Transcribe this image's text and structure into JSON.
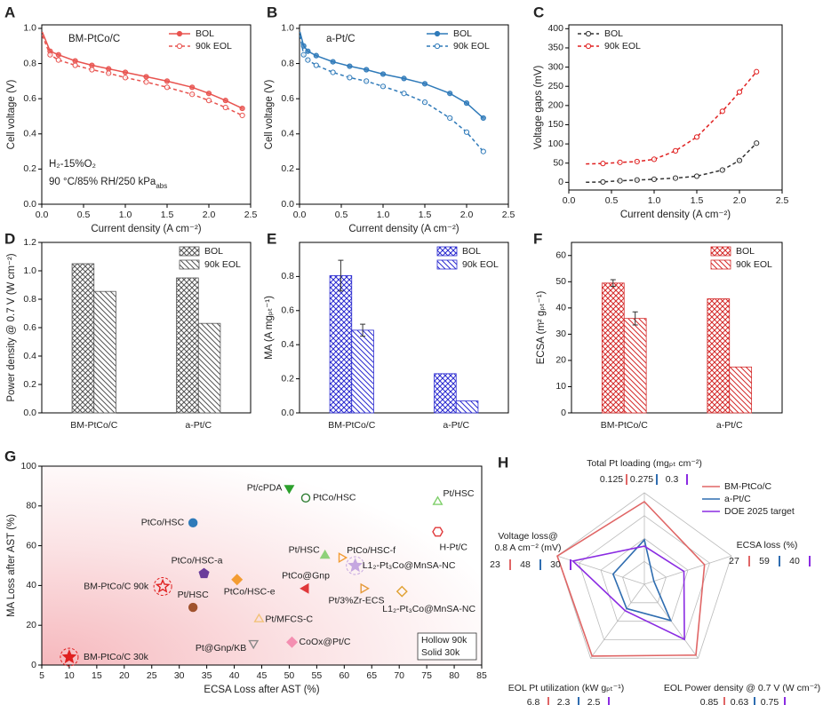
{
  "chart_data": [
    {
      "label": "A",
      "type": "line",
      "inset_title": "BM-PtCo/C",
      "notes": [
        {
          "text": "H₂-15%O₂"
        },
        {
          "text": "90 °C/85% RH/250 kPa",
          "sub": "abs"
        }
      ],
      "xlabel": "Current density (A cm⁻²)",
      "ylabel": "Cell voltage (V)",
      "xlim": [
        0,
        2.5
      ],
      "ylim": [
        0,
        1.02
      ],
      "xticks": [
        {
          "value": 0,
          "label": "0.0"
        },
        0.5,
        {
          "value": 1,
          "label": "1.0"
        },
        1.5,
        {
          "value": 2,
          "label": "2.0"
        },
        2.5
      ],
      "yticks": [
        {
          "value": 0,
          "label": "0.0"
        },
        0.2,
        0.4,
        0.6,
        0.8,
        {
          "value": 1,
          "label": "1.0"
        }
      ],
      "legend": "upper right",
      "x": [
        0.005,
        0.1,
        0.2,
        0.4,
        0.6,
        0.8,
        1.0,
        1.25,
        1.5,
        1.8,
        2.0,
        2.2,
        2.4
      ],
      "series": [
        {
          "name": "BOL",
          "color": "#e8534f",
          "style": "solid",
          "marker": "filled",
          "values": [
            0.98,
            0.87,
            0.85,
            0.815,
            0.79,
            0.77,
            0.75,
            0.725,
            0.7,
            0.665,
            0.63,
            0.59,
            0.545
          ]
        },
        {
          "name": "90k EOL",
          "color": "#e8534f",
          "style": "dashed",
          "marker": "hollow",
          "values": [
            0.96,
            0.85,
            0.82,
            0.79,
            0.765,
            0.745,
            0.72,
            0.695,
            0.665,
            0.625,
            0.59,
            0.55,
            0.505
          ]
        }
      ]
    },
    {
      "label": "B",
      "type": "line",
      "inset_title": "a-Pt/C",
      "xlabel": "Current density (A cm⁻²)",
      "ylabel": "Cell voltage (V)",
      "xlim": [
        0,
        2.5
      ],
      "ylim": [
        0,
        1.02
      ],
      "xticks": [
        {
          "value": 0,
          "label": "0.0"
        },
        0.5,
        {
          "value": 1,
          "label": "1.0"
        },
        1.5,
        {
          "value": 2,
          "label": "2.0"
        },
        2.5
      ],
      "yticks": [
        {
          "value": 0,
          "label": "0.0"
        },
        0.2,
        0.4,
        0.6,
        0.8,
        {
          "value": 1,
          "label": "1.0"
        }
      ],
      "legend": "upper right",
      "x": [
        0.005,
        0.05,
        0.1,
        0.2,
        0.4,
        0.6,
        0.8,
        1.0,
        1.25,
        1.5,
        1.8,
        2.0,
        2.2
      ],
      "series": [
        {
          "name": "BOL",
          "color": "#2f7ab9",
          "style": "solid",
          "marker": "filled",
          "values": [
            0.98,
            0.9,
            0.87,
            0.845,
            0.81,
            0.785,
            0.765,
            0.74,
            0.715,
            0.685,
            0.63,
            0.575,
            0.49
          ]
        },
        {
          "name": "90k EOL",
          "color": "#2f7ab9",
          "style": "dashed",
          "marker": "hollow",
          "values": [
            0.96,
            0.85,
            0.82,
            0.79,
            0.75,
            0.72,
            0.7,
            0.67,
            0.63,
            0.58,
            0.49,
            0.41,
            0.3
          ]
        }
      ]
    },
    {
      "label": "C",
      "type": "line",
      "xlabel": "Current density (A cm⁻²)",
      "ylabel": "Voltage gaps (mV)",
      "xlim": [
        0,
        2.5
      ],
      "ylim": [
        -20,
        410
      ],
      "xticks": [
        {
          "value": 0,
          "label": "0.0"
        },
        0.5,
        {
          "value": 1,
          "label": "1.0"
        },
        1.5,
        {
          "value": 2,
          "label": "2.0"
        },
        2.5
      ],
      "yticks": [
        0,
        50,
        100,
        150,
        200,
        250,
        300,
        350,
        400
      ],
      "legend": "upper left",
      "x": [
        0.2,
        0.4,
        0.6,
        0.8,
        1.0,
        1.25,
        1.5,
        1.8,
        2.0,
        2.2
      ],
      "series": [
        {
          "name": "BOL",
          "color": "#333333",
          "style": "dashed",
          "marker": "hollow",
          "values": [
            0,
            1,
            4,
            6,
            8,
            11,
            16,
            32,
            57,
            102
          ]
        },
        {
          "name": "90k EOL",
          "color": "#e02020",
          "style": "dashed",
          "marker": "hollow",
          "values": [
            48,
            49,
            52,
            54,
            60,
            82,
            118,
            185,
            235,
            288
          ]
        }
      ]
    },
    {
      "label": "D",
      "type": "bar",
      "ylabel": "Power density @ 0.7 V (W cm⁻²)",
      "categories": [
        "BM-PtCo/C",
        "a-Pt/C"
      ],
      "ylim": [
        0,
        1.2
      ],
      "yticks": [
        {
          "value": 0,
          "label": "0.0"
        },
        0.2,
        0.4,
        0.6,
        0.8,
        {
          "value": 1,
          "label": "1.0"
        },
        1.2
      ],
      "legend": "upper right",
      "series": [
        {
          "name": "BOL",
          "color": "#555555",
          "hatch": "cross",
          "values": [
            1.05,
            0.95
          ]
        },
        {
          "name": "90k EOL",
          "color": "#555555",
          "hatch": "diagonal",
          "values": [
            0.855,
            0.63
          ]
        }
      ]
    },
    {
      "label": "E",
      "type": "bar",
      "ylabel": "MA (A mgₚₜ⁻¹)",
      "categories": [
        "BM-PtCo/C",
        "a-Pt/C"
      ],
      "ylim": [
        0,
        1.0
      ],
      "yticks": [
        {
          "value": 0,
          "label": "0.0"
        },
        0.2,
        0.4,
        0.6,
        0.8
      ],
      "legend": "upper right",
      "series": [
        {
          "name": "BOL",
          "color": "#2a2ad0",
          "hatch": "cross",
          "values": [
            0.805,
            0.23
          ],
          "errors": [
            0.09,
            null
          ]
        },
        {
          "name": "90k EOL",
          "color": "#2a2ad0",
          "hatch": "diagonal",
          "values": [
            0.485,
            0.07
          ],
          "errors": [
            0.035,
            null
          ]
        }
      ]
    },
    {
      "label": "F",
      "type": "bar",
      "ylabel": "ECSA (m² gₚₜ⁻¹)",
      "categories": [
        "BM-PtCo/C",
        "a-Pt/C"
      ],
      "ylim": [
        0,
        65
      ],
      "yticks": [
        0,
        10,
        20,
        30,
        40,
        50,
        60
      ],
      "legend": "upper right",
      "series": [
        {
          "name": "BOL",
          "color": "#d42a2a",
          "hatch": "cross",
          "values": [
            49.5,
            43.5
          ],
          "errors": [
            1.3,
            null
          ]
        },
        {
          "name": "90k EOL",
          "color": "#d42a2a",
          "hatch": "diagonal",
          "values": [
            36,
            17.5
          ],
          "errors": [
            2.5,
            null
          ]
        }
      ]
    },
    {
      "label": "G",
      "type": "scatter",
      "xlabel": "ECSA Loss after AST (%)",
      "ylabel": "MA Loss after AST (%)",
      "xlim": [
        5,
        85
      ],
      "ylim": [
        0,
        100
      ],
      "xticks": [
        5,
        10,
        15,
        20,
        25,
        30,
        35,
        40,
        45,
        50,
        55,
        60,
        65,
        70,
        75,
        80,
        85
      ],
      "yticks": [
        0,
        20,
        40,
        60,
        80,
        100
      ],
      "legend_notes": [
        "Hollow 90k",
        "Solid 30k"
      ],
      "points": [
        {
          "label": "Pt/cPDA",
          "x": 50,
          "y": 89,
          "color": "#2ca02c",
          "marker": "tri-down",
          "hollow": false
        },
        {
          "label": "PtCo/HSC",
          "x": 53,
          "y": 84,
          "color": "#2e7d32",
          "marker": "circle",
          "hollow": true
        },
        {
          "label": "Pt/HSC",
          "x": 77,
          "y": 82,
          "color": "#7fcf6a",
          "marker": "tri-up",
          "hollow": true
        },
        {
          "label": "PtCo/HSC",
          "x": 32.5,
          "y": 71.5,
          "color": "#2f7ab9",
          "marker": "circle",
          "hollow": false
        },
        {
          "label": "H-Pt/C",
          "x": 77,
          "y": 67,
          "color": "#e0383a",
          "marker": "hexagon",
          "hollow": true
        },
        {
          "label": "Pt/HSC",
          "x": 56.5,
          "y": 55,
          "color": "#8fd17a",
          "marker": "tri-up",
          "hollow": false
        },
        {
          "label": "PtCo/HSC-f",
          "x": 59.5,
          "y": 54,
          "color": "#f39c32",
          "marker": "tri-right",
          "hollow": true
        },
        {
          "label": "L1₂-Pt₃Co@MnSA-NC",
          "x": 62,
          "y": 50,
          "color": "#c5a7e0",
          "marker": "star",
          "hollow": false
        },
        {
          "label": "PtCo/HSC-a",
          "x": 34.5,
          "y": 46,
          "color": "#6a3d9a",
          "marker": "pentagon",
          "hollow": false
        },
        {
          "label": "PtCo@Gnp",
          "x": 53,
          "y": 38.5,
          "color": "#e0383a",
          "marker": "tri-left",
          "hollow": false
        },
        {
          "label": "PtCo/HSC-e",
          "x": 40.5,
          "y": 43,
          "color": "#f39c32",
          "marker": "diamond",
          "hollow": false
        },
        {
          "label": "Pt/3%Zr-ECS",
          "x": 63.5,
          "y": 38.5,
          "color": "#e59a3a",
          "marker": "tri-right",
          "hollow": true
        },
        {
          "label": "L1₂-Pt₃Co@MnSA-NC",
          "x": 70.5,
          "y": 37,
          "color": "#e0a030",
          "marker": "diamond",
          "hollow": true
        },
        {
          "label": "BM-PtCo/C 90k",
          "x": 27,
          "y": 39.5,
          "color": "#e02020",
          "marker": "star",
          "hollow": true
        },
        {
          "label": "Pt/HSC",
          "x": 32.5,
          "y": 29,
          "color": "#a0522d",
          "marker": "circle",
          "hollow": false
        },
        {
          "label": "Pt/MFCS-C",
          "x": 44.5,
          "y": 23,
          "color": "#f2c27a",
          "marker": "tri-up",
          "hollow": true
        },
        {
          "label": "Pt@Gnp/KB",
          "x": 43.5,
          "y": 11,
          "color": "#888888",
          "marker": "tri-down",
          "hollow": true
        },
        {
          "label": "CoOx@Pt/C",
          "x": 50.5,
          "y": 11.5,
          "color": "#f48fb1",
          "marker": "diamond",
          "hollow": false
        },
        {
          "label": "BM-PtCo/C 30k",
          "x": 10,
          "y": 4,
          "color": "#e02020",
          "marker": "star",
          "hollow": false
        }
      ]
    },
    {
      "label": "H",
      "type": "radar",
      "axes": [
        {
          "label": [
            "Total Pt loading (mgₚₜ cm⁻²)"
          ],
          "lim": [
            0.45,
            0.09
          ]
        },
        {
          "label": [
            "ECSA loss (%)"
          ],
          "lim": [
            65,
            10
          ]
        },
        {
          "label": [
            "EOL Power density @ 0.7 V (W cm⁻²)"
          ],
          "lim": [
            0.4,
            0.87
          ]
        },
        {
          "label": [
            "EOL Pt utilization (kW gₚₜ⁻¹)"
          ],
          "lim": [
            0,
            7
          ]
        },
        {
          "label": [
            "Voltage loss@",
            "0.8 A cm⁻² (mV)"
          ],
          "lim": [
            62,
            23
          ]
        }
      ],
      "series": [
        {
          "name": "BM-PtCo/C",
          "color": "#e06666",
          "values": [
            0.125,
            27,
            0.85,
            6.8,
            23
          ]
        },
        {
          "name": "a-Pt/C",
          "color": "#2f6db0",
          "values": [
            0.275,
            59,
            0.63,
            2.3,
            48
          ]
        },
        {
          "name": "DOE 2025 target",
          "color": "#8a2be2",
          "values": [
            0.3,
            40,
            0.75,
            2.5,
            30
          ]
        }
      ]
    }
  ]
}
